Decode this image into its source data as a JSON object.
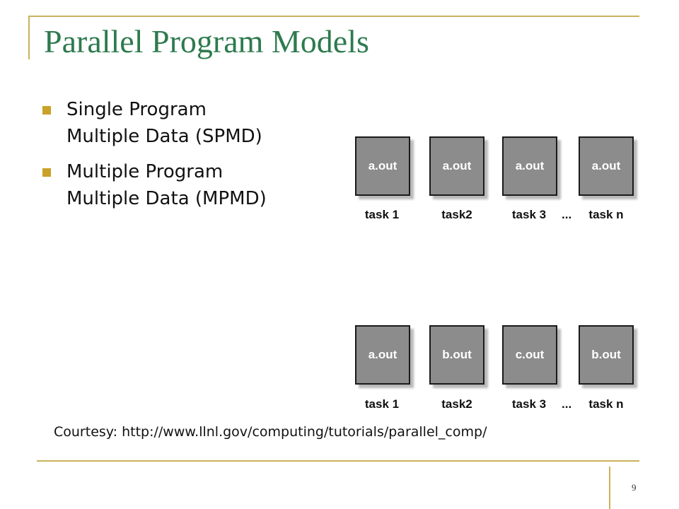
{
  "slide": {
    "title": "Parallel Program Models",
    "bullets": [
      "Single Program\nMultiple Data (SPMD)",
      "Multiple Program\nMultiple Data (MPMD)"
    ],
    "courtesy": "Courtesy: http://www.llnl.gov/computing/tutorials/parallel_comp/",
    "page_number": "9"
  },
  "spmd": {
    "boxes": [
      "a.out",
      "a.out",
      "a.out",
      "a.out"
    ],
    "tasks": [
      "task 1",
      "task2",
      "task 3",
      "task n"
    ],
    "ellipsis": "..."
  },
  "mpmd": {
    "boxes": [
      "a.out",
      "b.out",
      "c.out",
      "b.out"
    ],
    "tasks": [
      "task 1",
      "task2",
      "task 3",
      "task n"
    ],
    "ellipsis": "..."
  },
  "colors": {
    "title": "#2e7a4e",
    "accent_line": "#c9b25a",
    "bullet": "#c9a227",
    "box_fill": "#8c8c8c"
  }
}
